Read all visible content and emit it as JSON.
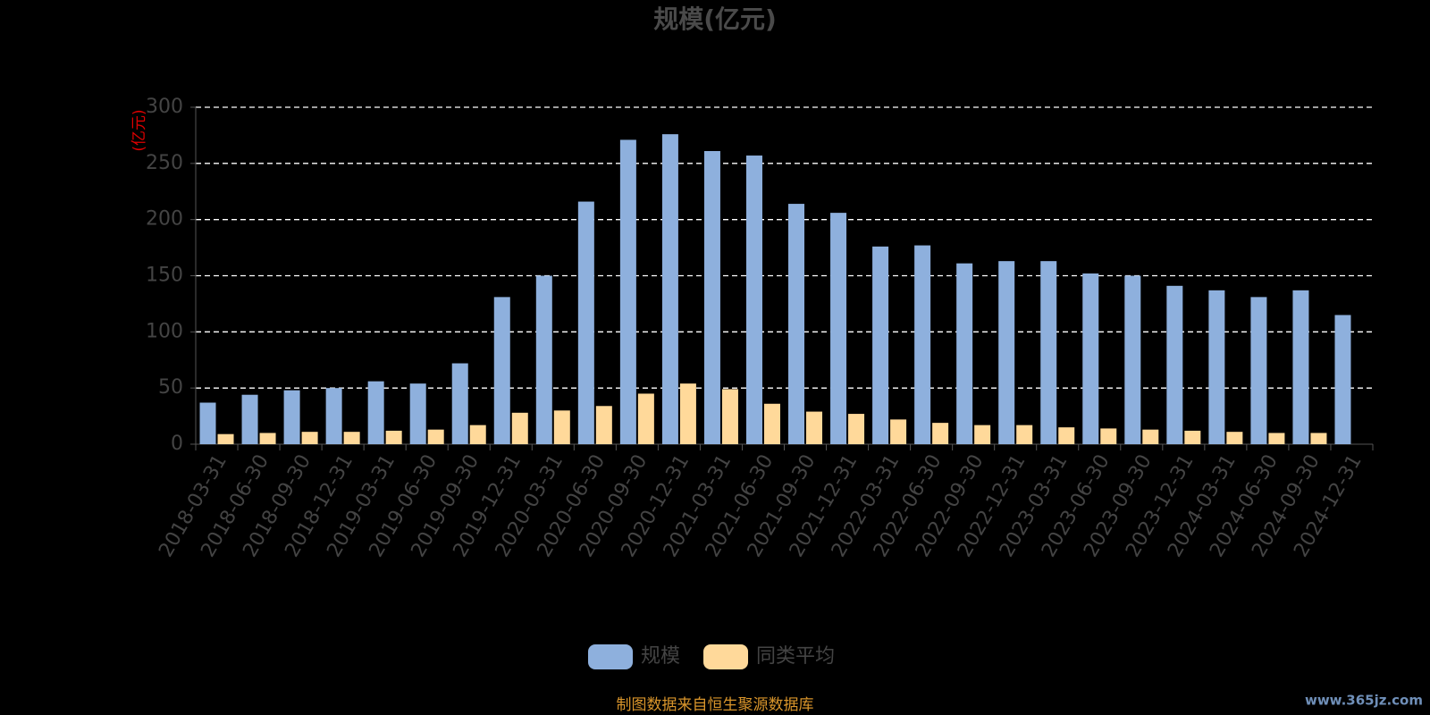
{
  "chart_data": {
    "type": "bar",
    "title": "规模(亿元)",
    "y_unit_label": "(亿元)",
    "categories": [
      "2018-03-31",
      "2018-06-30",
      "2018-09-30",
      "2018-12-31",
      "2019-03-31",
      "2019-06-30",
      "2019-09-30",
      "2019-12-31",
      "2020-03-31",
      "2020-06-30",
      "2020-09-30",
      "2020-12-31",
      "2021-03-31",
      "2021-06-30",
      "2021-09-30",
      "2021-12-31",
      "2022-03-31",
      "2022-06-30",
      "2022-09-30",
      "2022-12-31",
      "2023-03-31",
      "2023-06-30",
      "2023-09-30",
      "2023-12-31",
      "2024-03-31",
      "2024-06-30",
      "2024-09-30",
      "2024-12-31"
    ],
    "series": [
      {
        "name": "规模",
        "color": "#8eb0dd",
        "values": [
          37,
          44,
          48,
          50,
          56,
          54,
          72,
          131,
          150,
          216,
          271,
          276,
          261,
          257,
          214,
          206,
          176,
          177,
          161,
          163,
          163,
          152,
          150,
          141,
          137,
          131,
          137,
          115
        ]
      },
      {
        "name": "同类平均",
        "color": "#ffd99a",
        "values": [
          9,
          10,
          11,
          11,
          12,
          13,
          17,
          28,
          30,
          34,
          45,
          54,
          49,
          36,
          29,
          27,
          22,
          19,
          17,
          17,
          15,
          14,
          13,
          12,
          11,
          10,
          10,
          null
        ]
      }
    ],
    "ylim": [
      0,
      300
    ],
    "yticks": [
      0,
      50,
      100,
      150,
      200,
      250,
      300
    ],
    "grid": true,
    "legend_position": "bottom",
    "source": "制图数据来自恒生聚源数据库",
    "watermark": "www.365jz.com"
  }
}
